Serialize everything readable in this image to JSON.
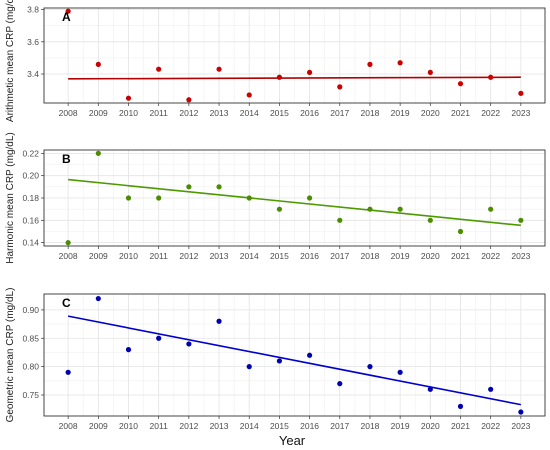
{
  "xlabel": "Year",
  "chart_data": [
    {
      "type": "scatter",
      "panel_label": "A",
      "ylabel": "Arithmetic mean CRP (mg/dL)",
      "x": [
        2008,
        2009,
        2010,
        2011,
        2012,
        2013,
        2014,
        2015,
        2016,
        2017,
        2018,
        2019,
        2020,
        2021,
        2022,
        2023
      ],
      "y": [
        3.79,
        3.46,
        3.25,
        3.43,
        3.24,
        3.43,
        3.27,
        3.38,
        3.41,
        3.32,
        3.46,
        3.47,
        3.41,
        3.34,
        3.38,
        3.28
      ],
      "trend": [
        3.37,
        3.38
      ],
      "ylim": [
        3.22,
        3.81
      ],
      "yticks": [
        "3.4",
        "3.6",
        "3.8"
      ],
      "ytick_values": [
        3.4,
        3.6,
        3.8
      ],
      "color": "#cc0000",
      "line_color": "#b30000",
      "grid": true
    },
    {
      "type": "scatter",
      "panel_label": "B",
      "ylabel": "Harmonic mean CRP (mg/dL)",
      "x": [
        2008,
        2009,
        2010,
        2011,
        2012,
        2013,
        2014,
        2015,
        2016,
        2017,
        2018,
        2019,
        2020,
        2021,
        2022,
        2023
      ],
      "y": [
        0.14,
        0.22,
        0.18,
        0.18,
        0.19,
        0.19,
        0.18,
        0.17,
        0.18,
        0.16,
        0.17,
        0.17,
        0.16,
        0.15,
        0.17,
        0.16
      ],
      "trend": [
        0.1965,
        0.1555
      ],
      "ylim": [
        0.137,
        0.223
      ],
      "yticks": [
        "0.14",
        "0.16",
        "0.18",
        "0.20",
        "0.22"
      ],
      "ytick_values": [
        0.14,
        0.16,
        0.18,
        0.2,
        0.22
      ],
      "color": "#4c8c00",
      "line_color": "#4c9a00",
      "grid": true
    },
    {
      "type": "scatter",
      "panel_label": "C",
      "ylabel": "Geometric mean CRP (mg/dL)",
      "x": [
        2008,
        2009,
        2010,
        2011,
        2012,
        2013,
        2014,
        2015,
        2016,
        2017,
        2018,
        2019,
        2020,
        2021,
        2022,
        2023
      ],
      "y": [
        0.79,
        0.92,
        0.83,
        0.85,
        0.84,
        0.88,
        0.8,
        0.81,
        0.82,
        0.77,
        0.8,
        0.79,
        0.76,
        0.73,
        0.76,
        0.72
      ],
      "trend": [
        0.889,
        0.733
      ],
      "ylim": [
        0.713,
        0.928
      ],
      "yticks": [
        "0.75",
        "0.80",
        "0.85",
        "0.90"
      ],
      "ytick_values": [
        0.75,
        0.8,
        0.85,
        0.9
      ],
      "color": "#0000b3",
      "line_color": "#0000cc",
      "grid": true
    }
  ]
}
